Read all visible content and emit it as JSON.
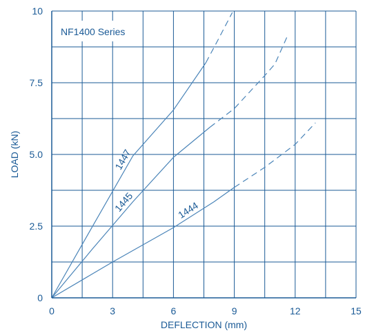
{
  "chart_data": {
    "type": "line",
    "title": "",
    "xlabel": "DEFLECTION (mm)",
    "ylabel": "LOAD (kN)",
    "xlim": [
      0,
      15
    ],
    "ylim": [
      0,
      10
    ],
    "x_ticks": [
      0,
      3,
      6,
      9,
      12,
      15
    ],
    "x_tick_labels": [
      "0",
      "3",
      "6",
      "9",
      "12",
      "15"
    ],
    "y_ticks": [
      0,
      2.5,
      5.0,
      7.5,
      10
    ],
    "y_tick_labels": [
      "0",
      "2.5",
      "5.0",
      "7.5",
      "10"
    ],
    "grid": true,
    "grid_x_step": 1.5,
    "grid_y_step": 1.25,
    "annotation": "NF1400 Series",
    "colors": {
      "axis": "#1a5a96",
      "grid": "#1a5a96",
      "line": "#4a84b8",
      "text": "#1a5a96",
      "label_text": "#1a5a96"
    },
    "series": [
      {
        "name": "1447",
        "solid": [
          [
            0,
            0
          ],
          [
            2.0,
            2.48
          ],
          [
            4.0,
            4.95
          ],
          [
            6.0,
            6.55
          ],
          [
            7.6,
            8.2
          ]
        ],
        "dashed": [
          [
            7.6,
            8.2
          ],
          [
            8.2,
            9.0
          ],
          [
            8.9,
            9.95
          ]
        ]
      },
      {
        "name": "1445",
        "solid": [
          [
            0,
            0
          ],
          [
            2.0,
            1.7
          ],
          [
            4.0,
            3.35
          ],
          [
            6.0,
            4.9
          ],
          [
            7.8,
            5.95
          ]
        ],
        "dashed": [
          [
            7.8,
            5.95
          ],
          [
            9.0,
            6.6
          ],
          [
            10.5,
            7.75
          ],
          [
            11.0,
            8.15
          ],
          [
            11.6,
            9.1
          ]
        ]
      },
      {
        "name": "1444",
        "solid": [
          [
            0,
            0
          ],
          [
            3.0,
            1.25
          ],
          [
            6.0,
            2.45
          ],
          [
            8.0,
            3.35
          ],
          [
            9.0,
            3.85
          ]
        ],
        "dashed": [
          [
            9.0,
            3.85
          ],
          [
            10.5,
            4.55
          ],
          [
            12.0,
            5.35
          ],
          [
            13.0,
            6.1
          ]
        ]
      }
    ]
  }
}
